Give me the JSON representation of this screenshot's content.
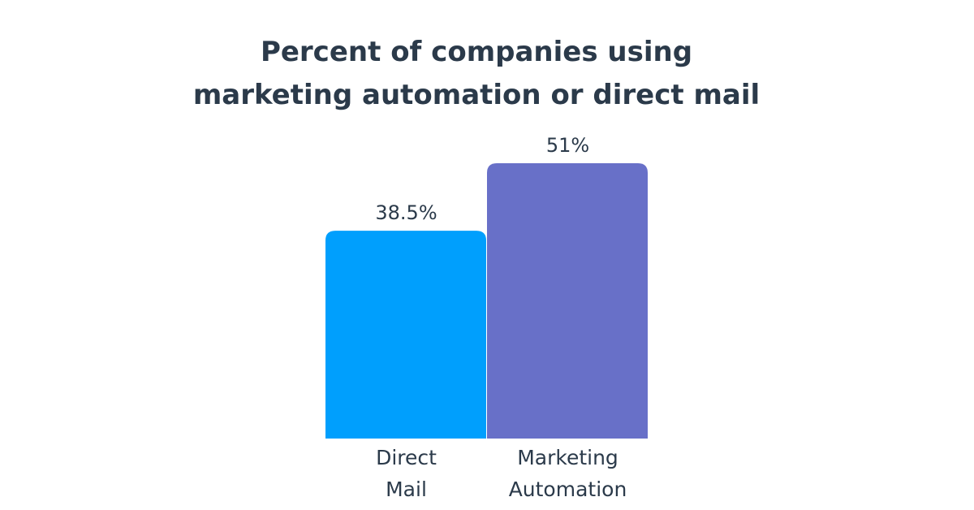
{
  "chart_data": {
    "type": "bar",
    "title": "Percent of companies using\nmarketing automation or direct mail",
    "categories": [
      "Direct\nMail",
      "Marketing\nAutomation"
    ],
    "values": [
      38.5,
      51
    ],
    "value_labels": [
      "38.5%",
      "51%"
    ],
    "colors": [
      "#009ffd",
      "#6870c8"
    ]
  }
}
